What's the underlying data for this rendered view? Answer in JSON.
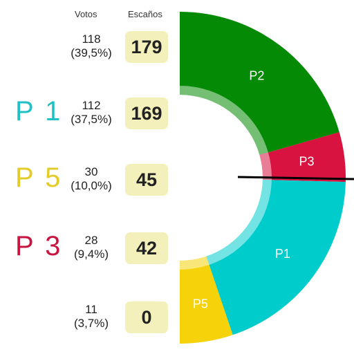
{
  "headers": {
    "votes": "Votos",
    "seats": "Escaños"
  },
  "rows": [
    {
      "party": "",
      "color": "",
      "votes": "118",
      "pct": "(39,5%)",
      "seats": "179"
    },
    {
      "party": "P 1",
      "color": "#20c1c6",
      "votes": "112",
      "pct": "(37,5%)",
      "seats": "169"
    },
    {
      "party": "P 5",
      "color": "#e3cc2a",
      "votes": "30",
      "pct": "(10,0%)",
      "seats": "45"
    },
    {
      "party": "P 3",
      "color": "#c8153f",
      "votes": "28",
      "pct": "(9,4%)",
      "seats": "42"
    },
    {
      "party": "",
      "color": "",
      "votes": "11",
      "pct": "(3,7%)",
      "seats": "0"
    }
  ],
  "chart_data": {
    "type": "pie",
    "subtype": "half-donut",
    "total_seats": 435,
    "majority_line": true,
    "series": [
      {
        "name": "P2",
        "value": 179,
        "color": "#058a05"
      },
      {
        "name": "P3",
        "value": 42,
        "color": "#d8133f"
      },
      {
        "name": "P1",
        "value": 169,
        "color": "#00cccc"
      },
      {
        "name": "P5",
        "value": 45,
        "color": "#f5d20a"
      }
    ]
  }
}
